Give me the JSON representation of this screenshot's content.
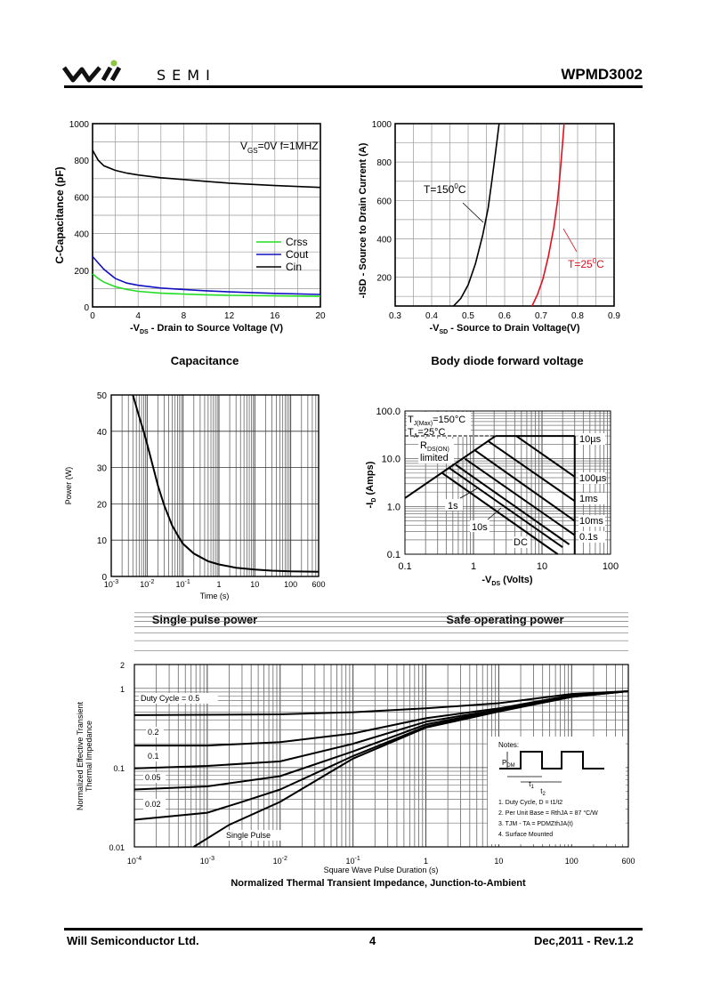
{
  "header": {
    "brand": "SEMI",
    "part_number": "WPMD3002"
  },
  "footer": {
    "company": "Will Semiconductor Ltd.",
    "page": "4",
    "revision": "Dec,2011 - Rev.1.2"
  },
  "colors": {
    "crss": "#22dd22",
    "cout": "#1010c0",
    "cin": "#000000",
    "t25": "#e01020",
    "logo_dot": "#8cc63f"
  },
  "chart_data": [
    {
      "type": "line",
      "caption": "Capacitance",
      "xlabel": "-VDS - Drain to Source Voltage (V)",
      "ylabel": "C-Capacitance (pF)",
      "annotation": "VGS=0V f=1MHZ",
      "xlim": [
        0,
        20
      ],
      "ylim": [
        0,
        1000
      ],
      "xticks": [
        "0",
        "4",
        "8",
        "12",
        "16",
        "20"
      ],
      "yticks": [
        "0",
        "200",
        "400",
        "600",
        "800",
        "1000"
      ],
      "legend": "center-right",
      "series": [
        {
          "name": "Crss",
          "x": [
            0,
            0.5,
            1,
            2,
            3,
            4,
            6,
            8,
            10,
            12,
            16,
            20
          ],
          "y": [
            180,
            155,
            135,
            110,
            95,
            85,
            75,
            70,
            66,
            63,
            60,
            58
          ]
        },
        {
          "name": "Cout",
          "x": [
            0,
            0.5,
            1,
            2,
            3,
            4,
            6,
            8,
            10,
            12,
            16,
            20
          ],
          "y": [
            275,
            240,
            205,
            155,
            130,
            118,
            103,
            95,
            88,
            82,
            74,
            68
          ]
        },
        {
          "name": "Cin",
          "x": [
            0,
            0.5,
            1,
            2,
            3,
            4,
            6,
            8,
            10,
            12,
            16,
            20
          ],
          "y": [
            855,
            800,
            770,
            745,
            730,
            720,
            705,
            695,
            685,
            675,
            662,
            652
          ]
        }
      ]
    },
    {
      "type": "line",
      "caption": "Body diode forward voltage",
      "xlabel": "-VSD - Source to Drain Voltage(V)",
      "ylabel": "-ISD - Source to Drain Current (A)",
      "xlim": [
        0.3,
        0.9
      ],
      "ylim": [
        50,
        1000
      ],
      "xticks": [
        "0.3",
        "0.4",
        "0.5",
        "0.6",
        "0.7",
        "0.8",
        "0.9"
      ],
      "yticks": [
        "200",
        "400",
        "600",
        "800",
        "1000"
      ],
      "series": [
        {
          "name": "T=150°C",
          "label_main": "T=150",
          "label_sup": "0",
          "label_end": "C",
          "x": [
            0.46,
            0.48,
            0.5,
            0.52,
            0.54,
            0.555,
            0.565,
            0.575,
            0.585
          ],
          "y": [
            50,
            90,
            160,
            270,
            420,
            560,
            700,
            850,
            1000
          ]
        },
        {
          "name": "T=25°C",
          "label_main": "T=25",
          "label_sup": "0",
          "label_end": "C",
          "x": [
            0.675,
            0.69,
            0.705,
            0.72,
            0.735,
            0.745,
            0.752,
            0.758,
            0.763
          ],
          "y": [
            50,
            110,
            190,
            310,
            460,
            600,
            740,
            880,
            1000
          ]
        }
      ]
    },
    {
      "type": "line",
      "caption": "Single pulse power",
      "xlabel": "Time (s)",
      "ylabel": "Power (W)",
      "xscale": "log",
      "xlim": [
        0.001,
        600
      ],
      "ylim": [
        0,
        50
      ],
      "xticks": [
        {
          "base": "10",
          "exp": "-3"
        },
        {
          "base": "10",
          "exp": "-2"
        },
        {
          "base": "10",
          "exp": "-1"
        },
        {
          "base": "1",
          "exp": ""
        },
        {
          "base": "10",
          "exp": ""
        },
        {
          "base": "100",
          "exp": ""
        },
        {
          "base": "600",
          "exp": ""
        }
      ],
      "yticks": [
        "0",
        "10",
        "20",
        "30",
        "40",
        "50"
      ],
      "series": [
        {
          "name": "Single pulse",
          "x": [
            0.004,
            0.006,
            0.008,
            0.01,
            0.02,
            0.03,
            0.05,
            0.08,
            0.1,
            0.2,
            0.5,
            1,
            3,
            10,
            30,
            100,
            600
          ],
          "y": [
            50,
            44,
            40,
            36.5,
            25,
            19.5,
            14,
            10.5,
            9,
            6.3,
            4.2,
            3.3,
            2.4,
            1.9,
            1.6,
            1.4,
            1.3
          ]
        }
      ]
    },
    {
      "type": "line",
      "caption": "Safe operating power",
      "xlabel": "-VDS (Volts)",
      "ylabel": "-ID (Amps)",
      "xscale": "log",
      "yscale": "log",
      "xlim": [
        0.1,
        100
      ],
      "ylim": [
        0.1,
        100
      ],
      "xticks": [
        "0.1",
        "1",
        "10",
        "100"
      ],
      "yticks": [
        "0.1",
        "1.0",
        "10.0",
        "100.0"
      ],
      "annotations": [
        "TJ(Max)=150°C",
        "TA=25°C",
        "RDS(ON) limited",
        "1s",
        "10s",
        "DC"
      ],
      "series": [
        {
          "name": "RDS(ON) limited",
          "x": [
            0.1,
            2.1
          ],
          "y": [
            1.5,
            30
          ]
        },
        {
          "name": "10µs",
          "x": [
            2.1,
            30
          ],
          "y": [
            30,
            30
          ]
        },
        {
          "name": "100µs",
          "x": [
            4.2,
            30
          ],
          "y": [
            30,
            4.2
          ]
        },
        {
          "name": "1ms",
          "x": [
            1.6,
            30
          ],
          "y": [
            24,
            1.3
          ]
        },
        {
          "name": "10ms",
          "x": [
            1.05,
            30
          ],
          "y": [
            15,
            0.5
          ]
        },
        {
          "name": "0.1s",
          "x": [
            0.75,
            30
          ],
          "y": [
            10,
            0.25
          ]
        },
        {
          "name": "1s",
          "x": [
            0.55,
            25
          ],
          "y": [
            7.5,
            0.16
          ]
        },
        {
          "name": "10s",
          "x": [
            0.45,
            20
          ],
          "y": [
            6.3,
            0.14
          ]
        },
        {
          "name": "DC",
          "x": [
            0.35,
            17
          ],
          "y": [
            5,
            0.1
          ]
        }
      ]
    },
    {
      "type": "line",
      "caption": "Normalized Thermal Transient Impedance, Junction-to-Ambient",
      "xlabel": "Square Wave Pulse Duration (s)",
      "ylabel": "Normalized Effective Transient Thermal Impedance",
      "xscale": "log",
      "yscale": "log",
      "xlim": [
        0.0001,
        600
      ],
      "ylim": [
        0.01,
        2
      ],
      "xticks": [
        {
          "base": "10",
          "exp": "-4"
        },
        {
          "base": "10",
          "exp": "-3"
        },
        {
          "base": "10",
          "exp": "-2"
        },
        {
          "base": "10",
          "exp": "-1"
        },
        {
          "base": "1",
          "exp": ""
        },
        {
          "base": "10",
          "exp": ""
        },
        {
          "base": "100",
          "exp": ""
        },
        {
          "base": "600",
          "exp": ""
        }
      ],
      "yticks": [
        "0.01",
        "0.1",
        "1",
        "2"
      ],
      "series": [
        {
          "name": "Duty Cycle = 0.5",
          "label": "Duty Cycle = 0.5",
          "x": [
            0.0001,
            0.01,
            0.1,
            1,
            10,
            100,
            600
          ],
          "y": [
            0.46,
            0.47,
            0.5,
            0.56,
            0.65,
            0.85,
            0.92
          ]
        },
        {
          "name": "0.2",
          "label": "0.2",
          "x": [
            0.0001,
            0.001,
            0.01,
            0.1,
            1,
            10,
            100,
            600
          ],
          "y": [
            0.19,
            0.19,
            0.21,
            0.27,
            0.42,
            0.56,
            0.82,
            0.92
          ]
        },
        {
          "name": "0.1",
          "label": "0.1",
          "x": [
            0.0001,
            0.001,
            0.01,
            0.1,
            1,
            10,
            100,
            600
          ],
          "y": [
            0.098,
            0.105,
            0.12,
            0.2,
            0.38,
            0.54,
            0.8,
            0.92
          ]
        },
        {
          "name": "0.05",
          "label": "0.05",
          "x": [
            0.0001,
            0.001,
            0.01,
            0.1,
            1,
            10,
            100,
            600
          ],
          "y": [
            0.053,
            0.058,
            0.078,
            0.16,
            0.35,
            0.53,
            0.79,
            0.92
          ]
        },
        {
          "name": "0.02",
          "label": "0.02",
          "x": [
            0.0001,
            0.001,
            0.003,
            0.01,
            0.1,
            1,
            10,
            100,
            600
          ],
          "y": [
            0.022,
            0.027,
            0.037,
            0.053,
            0.14,
            0.33,
            0.52,
            0.78,
            0.92
          ]
        },
        {
          "name": "Single Pulse",
          "label": "Single Pulse",
          "x": [
            0.00065,
            0.002,
            0.01,
            0.1,
            1,
            10,
            100,
            600
          ],
          "y": [
            0.01,
            0.019,
            0.037,
            0.13,
            0.32,
            0.51,
            0.78,
            0.92
          ]
        }
      ],
      "notes": {
        "title": "Notes:",
        "pdm": "PDM",
        "t1": "t1",
        "t2": "t2",
        "items": [
          "1. Duty Cycle, D = t1/t2",
          "2. Per Unit Base = RthJA = 87 °C/W",
          "3. TJM - TA = PDMZthJA(t)",
          "4. Surface Mounted"
        ]
      }
    }
  ]
}
